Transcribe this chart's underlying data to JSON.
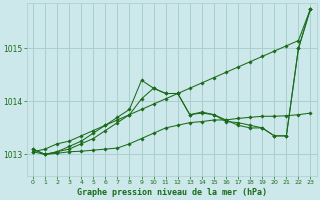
{
  "background_color": "#cce8ea",
  "grid_color": "#aacfcf",
  "line_color": "#1a6b1a",
  "title": "Graphe pression niveau de la mer (hPa)",
  "ylabel_ticks": [
    1013,
    1014,
    1015
  ],
  "xlim": [
    -0.5,
    23.5
  ],
  "ylim": [
    1012.6,
    1015.85
  ],
  "x_ticks": [
    0,
    1,
    2,
    3,
    4,
    5,
    6,
    7,
    8,
    9,
    10,
    11,
    12,
    13,
    14,
    15,
    16,
    17,
    18,
    19,
    20,
    21,
    22,
    23
  ],
  "series": [
    {
      "x": [
        0,
        1,
        2,
        3,
        4,
        5,
        6,
        7,
        8,
        9,
        10,
        11,
        12,
        13,
        14,
        15,
        16,
        17,
        18,
        19,
        20,
        21,
        22,
        23
      ],
      "y": [
        1013.05,
        1013.1,
        1013.2,
        1013.25,
        1013.35,
        1013.45,
        1013.55,
        1013.65,
        1013.75,
        1013.85,
        1013.95,
        1014.05,
        1014.15,
        1014.25,
        1014.35,
        1014.45,
        1014.55,
        1014.65,
        1014.75,
        1014.85,
        1014.95,
        1015.05,
        1015.15,
        1015.75
      ]
    },
    {
      "x": [
        0,
        1,
        2,
        3,
        4,
        5,
        6,
        7,
        8,
        9,
        10,
        11,
        12,
        13,
        14,
        15,
        16,
        17,
        18,
        19,
        20,
        21,
        22,
        23
      ],
      "y": [
        1013.1,
        1013.0,
        1013.05,
        1013.1,
        1013.2,
        1013.3,
        1013.45,
        1013.6,
        1013.75,
        1014.05,
        1014.25,
        1014.15,
        1014.15,
        1013.75,
        1013.8,
        1013.75,
        1013.65,
        1013.55,
        1013.5,
        1013.5,
        1013.35,
        1013.35,
        1015.0,
        1015.75
      ]
    },
    {
      "x": [
        0,
        1,
        2,
        3,
        4,
        5,
        6,
        7,
        8,
        9,
        10,
        11,
        12,
        13,
        14,
        15,
        16,
        17,
        18,
        19,
        20,
        21,
        22,
        23
      ],
      "y": [
        1013.1,
        1013.0,
        1013.05,
        1013.15,
        1013.25,
        1013.4,
        1013.55,
        1013.7,
        1013.85,
        1014.4,
        1014.25,
        1014.15,
        1014.15,
        1013.75,
        1013.78,
        1013.75,
        1013.62,
        1013.6,
        1013.55,
        1013.5,
        1013.35,
        1013.35,
        1015.0,
        1015.75
      ]
    },
    {
      "x": [
        0,
        1,
        2,
        3,
        4,
        5,
        6,
        7,
        8,
        9,
        10,
        11,
        12,
        13,
        14,
        15,
        16,
        17,
        18,
        19,
        20,
        21,
        22,
        23
      ],
      "y": [
        1013.05,
        1013.0,
        1013.02,
        1013.05,
        1013.06,
        1013.08,
        1013.1,
        1013.12,
        1013.2,
        1013.3,
        1013.4,
        1013.5,
        1013.55,
        1013.6,
        1013.62,
        1013.65,
        1013.65,
        1013.68,
        1013.7,
        1013.72,
        1013.72,
        1013.73,
        1013.75,
        1013.78
      ]
    }
  ]
}
